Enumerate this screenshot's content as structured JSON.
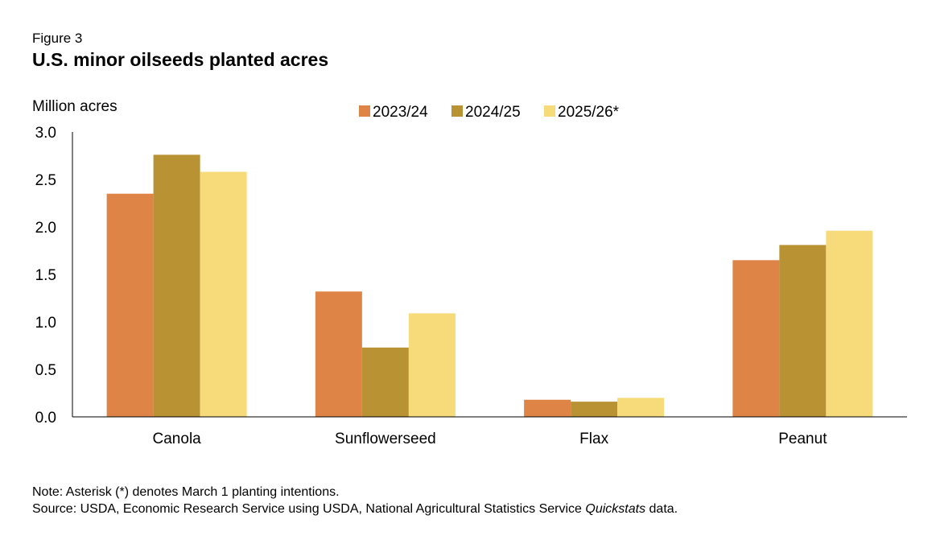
{
  "figure_label": "Figure 3",
  "title": "U.S. minor oilseeds planted acres",
  "note": "Note: Asterisk (*) denotes March 1 planting intentions.",
  "source": {
    "prefix": "Source: USDA, Economic Research Service using USDA, National Agricultural Statistics Service ",
    "italic": "Quickstats",
    "suffix": " data."
  },
  "chart_data": {
    "type": "bar",
    "ylabel": "Million acres",
    "ylim": [
      0,
      3.0
    ],
    "yticks": [
      "0.0",
      "0.5",
      "1.0",
      "1.5",
      "2.0",
      "2.5",
      "3.0"
    ],
    "categories": [
      "Canola",
      "Sunflowerseed",
      "Flax",
      "Peanut"
    ],
    "series": [
      {
        "name": "2023/24",
        "color": "#df8447",
        "values": [
          2.35,
          1.32,
          0.18,
          1.65
        ]
      },
      {
        "name": "2024/25",
        "color": "#b89233",
        "values": [
          2.76,
          0.73,
          0.16,
          1.81
        ]
      },
      {
        "name": "2025/26*",
        "color": "#f7da7a",
        "values": [
          2.58,
          1.09,
          0.2,
          1.96
        ]
      }
    ],
    "legend_position": "top-center",
    "grid": false
  }
}
